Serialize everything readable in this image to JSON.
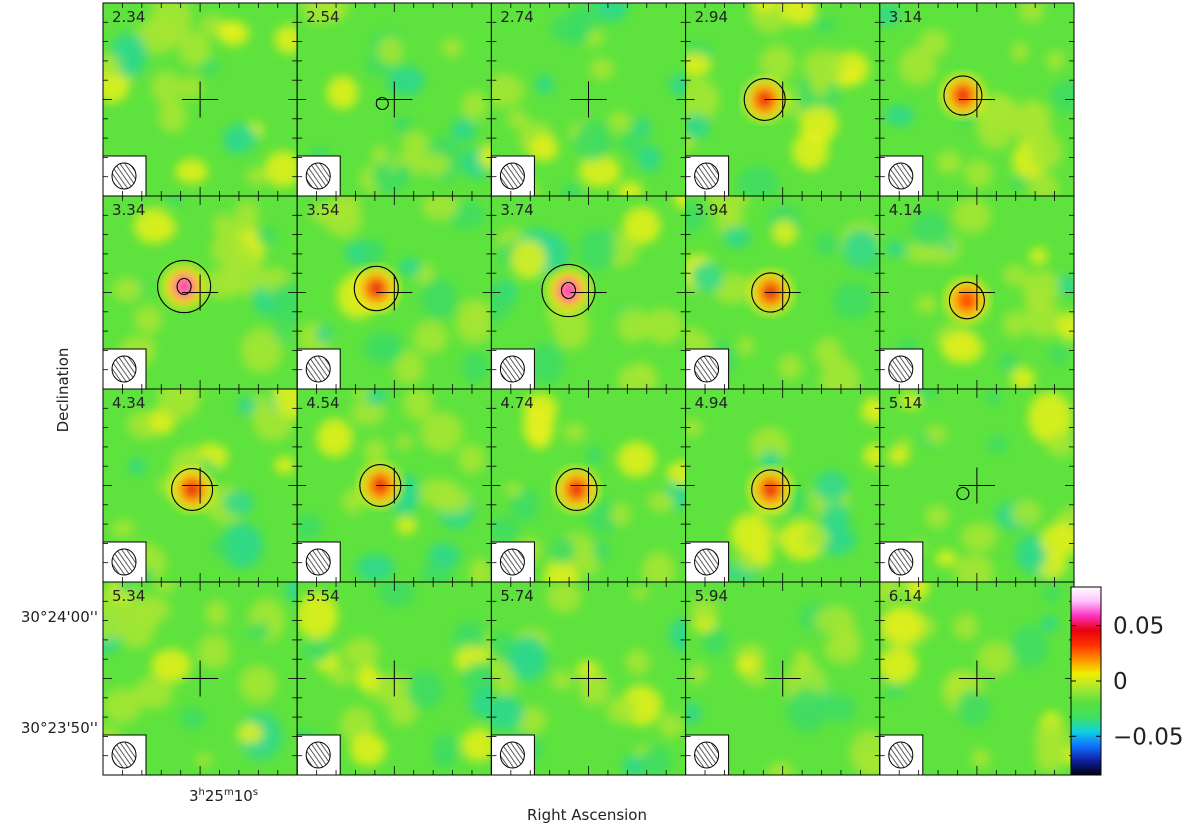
{
  "chart_data": {
    "type": "heatmap",
    "description_kind": "channel-map",
    "xlabel": "Right Ascension",
    "ylabel": "Declination",
    "ra_tick_label": "3h25m10s",
    "dec_tick_labels": [
      "30°24'00''",
      "30°23'50''"
    ],
    "colorbar": {
      "ticks": [
        0.05,
        0,
        -0.05
      ],
      "tick_labels": [
        "0.05",
        "0",
        "−0.05"
      ],
      "range": [
        -0.085,
        0.085
      ],
      "colormap": [
        "#000010",
        "#1020a0",
        "#1070ff",
        "#10d0e0",
        "#40e060",
        "#58e040",
        "#a8e830",
        "#f0f000",
        "#ff9000",
        "#ff3000",
        "#e80010",
        "#ff30c0",
        "#ffc0ff",
        "#ffffff"
      ]
    },
    "grid": {
      "rows": 4,
      "cols": 5
    },
    "panels": [
      {
        "velocity": "2.34",
        "peak": 0.0
      },
      {
        "velocity": "2.54",
        "peak": 0.02
      },
      {
        "velocity": "2.74",
        "peak": 0.01
      },
      {
        "velocity": "2.94",
        "peak": 0.045
      },
      {
        "velocity": "3.14",
        "peak": 0.04
      },
      {
        "velocity": "3.34",
        "peak": 0.065
      },
      {
        "velocity": "3.54",
        "peak": 0.05
      },
      {
        "velocity": "3.74",
        "peak": 0.065
      },
      {
        "velocity": "3.94",
        "peak": 0.04
      },
      {
        "velocity": "4.14",
        "peak": 0.035
      },
      {
        "velocity": "4.34",
        "peak": 0.045
      },
      {
        "velocity": "4.54",
        "peak": 0.045
      },
      {
        "velocity": "4.74",
        "peak": 0.045
      },
      {
        "velocity": "4.94",
        "peak": 0.04
      },
      {
        "velocity": "5.14",
        "peak": 0.02
      },
      {
        "velocity": "5.34",
        "peak": 0.0
      },
      {
        "velocity": "5.54",
        "peak": 0.01
      },
      {
        "velocity": "5.74",
        "peak": 0.0
      },
      {
        "velocity": "5.94",
        "peak": 0.0
      },
      {
        "velocity": "6.14",
        "peak": 0.0
      }
    ]
  }
}
